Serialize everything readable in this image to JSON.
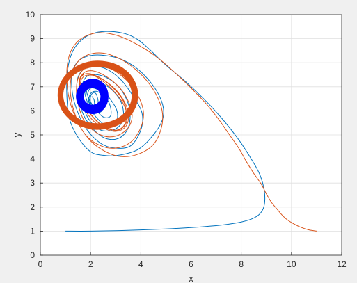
{
  "chart_data": {
    "type": "line",
    "title": "",
    "xlabel": "x",
    "ylabel": "y",
    "xlim": [
      0,
      12
    ],
    "ylim": [
      0,
      10
    ],
    "xticks": [
      0,
      2,
      4,
      6,
      8,
      10,
      12
    ],
    "yticks": [
      0,
      1,
      2,
      3,
      4,
      5,
      6,
      7,
      8,
      9,
      10
    ],
    "xtick_labels": [
      "0",
      "2",
      "4",
      "6",
      "8",
      "10",
      "12"
    ],
    "ytick_labels": [
      "0",
      "1",
      "2",
      "3",
      "4",
      "5",
      "6",
      "7",
      "8",
      "9",
      "10"
    ],
    "grid": true,
    "legend": "none",
    "series": [
      {
        "color": "#0072bd",
        "start": [
          1,
          1
        ],
        "x": [
          1,
          2,
          3,
          4,
          5,
          6,
          7,
          7.5,
          8,
          8.4,
          8.7,
          8.88,
          8.94,
          8.9,
          8.72,
          8.4,
          7.9,
          7.3,
          6.6,
          5.8,
          5.0,
          4.4,
          3.9,
          3.4,
          2.8,
          2.2,
          1.7,
          1.3,
          1.1,
          1.05,
          1.15,
          1.5,
          2.0,
          2.5,
          3.1,
          3.9,
          4.5,
          4.85,
          4.9,
          4.7,
          4.3,
          3.8,
          3.2,
          2.6,
          2.0,
          1.55,
          1.3,
          1.25,
          1.4,
          1.8,
          2.4,
          3.0,
          3.6,
          4.0,
          4.05,
          3.7,
          3.2,
          2.6,
          2.0,
          1.6,
          1.45,
          1.55,
          1.9,
          2.5,
          3.1,
          3.5,
          3.55,
          3.2,
          2.6,
          2.0,
          1.7,
          1.65,
          1.9,
          2.4,
          3.0,
          3.3,
          3.2,
          2.7,
          2.1,
          1.8,
          1.8,
          2.1,
          2.6,
          3.0,
          3.05,
          2.7,
          2.2,
          1.9,
          1.85,
          2.1,
          2.5,
          2.8,
          2.75,
          2.4,
          2.05,
          1.9,
          1.95,
          2.2,
          2.45,
          2.5,
          2.35,
          2.1,
          1.95,
          1.97,
          2.1,
          2.25,
          2.3,
          2.22,
          2.1,
          2.0,
          2.0,
          2.08,
          2.15,
          2.14,
          2.05
        ],
        "y": [
          1.0,
          1.0,
          1.02,
          1.05,
          1.09,
          1.15,
          1.23,
          1.29,
          1.38,
          1.5,
          1.68,
          1.95,
          2.3,
          2.8,
          3.4,
          4.0,
          4.8,
          5.6,
          6.4,
          7.2,
          7.9,
          8.5,
          8.95,
          9.2,
          9.3,
          9.25,
          9.0,
          8.5,
          7.8,
          6.8,
          5.7,
          4.9,
          4.3,
          4.15,
          4.15,
          4.4,
          5.0,
          5.6,
          6.1,
          6.7,
          7.3,
          7.8,
          8.15,
          8.3,
          8.3,
          8.1,
          7.7,
          7.0,
          6.2,
          5.3,
          4.65,
          4.45,
          4.55,
          5.2,
          5.9,
          6.6,
          7.3,
          7.75,
          7.85,
          7.6,
          7.1,
          6.3,
          5.5,
          4.9,
          4.85,
          5.3,
          6.1,
          6.9,
          7.4,
          7.5,
          7.2,
          6.5,
          5.7,
          5.2,
          5.25,
          5.7,
          6.4,
          7.0,
          7.25,
          7.1,
          6.6,
          5.9,
          5.4,
          5.5,
          6.0,
          6.6,
          7.1,
          7.1,
          6.75,
          6.2,
          5.75,
          5.8,
          6.3,
          6.8,
          6.95,
          6.75,
          6.3,
          5.95,
          6.0,
          6.35,
          6.75,
          6.8,
          6.6,
          6.25,
          6.05,
          6.1,
          6.4,
          6.7,
          6.75,
          6.6,
          6.35,
          6.15,
          6.2,
          6.45,
          6.6
        ]
      },
      {
        "color": "#d95319",
        "start": [
          11,
          1
        ],
        "x": [
          11.0,
          10.7,
          10.4,
          10.1,
          9.8,
          9.6,
          9.4,
          9.2,
          9.0,
          8.8,
          8.5,
          8.2,
          7.9,
          7.5,
          7.1,
          6.6,
          6.0,
          5.4,
          4.8,
          4.2,
          3.6,
          3.0,
          2.4,
          1.9,
          1.45,
          1.15,
          1.05,
          1.15,
          1.5,
          2.0,
          2.6,
          3.2,
          3.9,
          4.5,
          4.82,
          4.85,
          4.6,
          4.2,
          3.7,
          3.1,
          2.5,
          1.95,
          1.5,
          1.25,
          1.2,
          1.4,
          1.8,
          2.4,
          3.0,
          3.6,
          4.0,
          4.1,
          3.8,
          3.3,
          2.7,
          2.1,
          1.65,
          1.45,
          1.5,
          1.8,
          2.4,
          3.0,
          3.5,
          3.65,
          3.35,
          2.8,
          2.15,
          1.7,
          1.55,
          1.7,
          2.2,
          2.9,
          3.4,
          3.5,
          3.15,
          2.5,
          1.9,
          1.6,
          1.6,
          1.9,
          2.5,
          3.1,
          3.45,
          3.3,
          2.7,
          2.05,
          1.62,
          1.58,
          1.85,
          2.45,
          3.05,
          3.4,
          3.35,
          2.85,
          2.2,
          1.7,
          1.58,
          1.8
        ],
        "y": [
          1.0,
          1.05,
          1.15,
          1.3,
          1.5,
          1.7,
          1.95,
          2.2,
          2.55,
          2.95,
          3.4,
          3.9,
          4.45,
          5.05,
          5.65,
          6.3,
          6.95,
          7.55,
          8.1,
          8.55,
          8.9,
          9.15,
          9.25,
          9.15,
          8.85,
          8.3,
          7.5,
          6.5,
          5.5,
          4.75,
          4.3,
          4.1,
          4.2,
          4.6,
          5.3,
          6.0,
          6.7,
          7.3,
          7.8,
          8.2,
          8.4,
          8.35,
          8.05,
          7.5,
          6.7,
          5.8,
          5.0,
          4.55,
          4.45,
          4.7,
          5.3,
          6.0,
          6.8,
          7.4,
          7.8,
          7.9,
          7.65,
          7.1,
          6.3,
          5.5,
          5.0,
          4.95,
          5.3,
          5.9,
          6.7,
          7.3,
          7.65,
          7.55,
          7.0,
          6.2,
          5.5,
          5.15,
          5.35,
          5.95,
          6.7,
          7.3,
          7.55,
          7.35,
          6.8,
          6.0,
          5.35,
          5.2,
          5.6,
          6.3,
          7.05,
          7.5,
          7.45,
          6.9,
          6.1,
          5.4,
          5.2,
          5.55,
          6.3,
          7.0,
          7.45,
          7.4,
          6.85,
          6.1
        ]
      },
      {
        "color": "#d95319",
        "band": true,
        "center": [
          2.18,
          6.65
        ],
        "radius_x": [
          1.28,
          1.48
        ],
        "radius_y": [
          1.18,
          1.42
        ],
        "bulge_right": 0.15
      },
      {
        "color": "#0000ff",
        "band": true,
        "center": [
          2.05,
          6.6
        ],
        "radius_x": [
          0.34,
          0.62
        ],
        "radius_y": [
          0.36,
          0.72
        ],
        "bulge_right": 0.05
      }
    ]
  }
}
